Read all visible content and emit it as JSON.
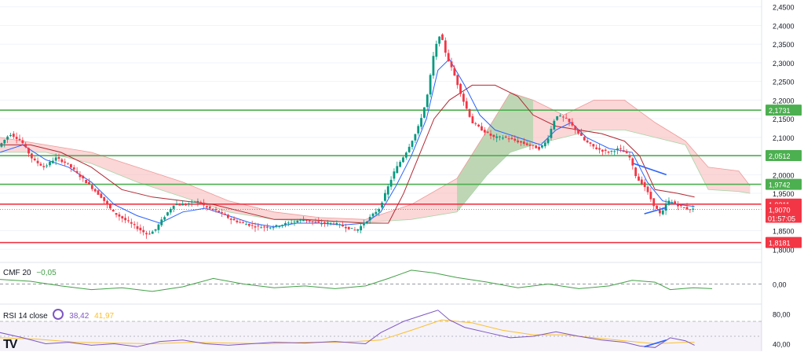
{
  "colors": {
    "up": "#089981",
    "down": "#f23645",
    "tenkan": "#2962ff",
    "kijun": "#b22833",
    "chikou": "#43a047",
    "cloud_bull": "#a5d6a7",
    "cloud_bear": "#f8b7b7",
    "support_line": "#f23645",
    "resistance_line": "#4caf50",
    "cmf": "#43a047",
    "rsi": "#7e57c2",
    "rsi_ma": "#fbc02d",
    "trend": "#2962ff"
  },
  "chart_data": {
    "type": "candlestick",
    "y_axis": {
      "range": [
        1.79,
        2.46
      ],
      "ticks": [
        "2,4500",
        "2,4000",
        "2,3500",
        "2,3000",
        "2,2500",
        "2,2000",
        "2,1500",
        "2,1000",
        "2,0500",
        "2,0000",
        "1,9500",
        "1,8500",
        "1,8000"
      ],
      "tick_values": [
        2.45,
        2.4,
        2.35,
        2.3,
        2.25,
        2.2,
        2.15,
        2.1,
        2.05,
        2.0,
        1.95,
        1.85,
        1.8
      ]
    },
    "level_lines": [
      {
        "label": "2,1731",
        "value": 2.1731,
        "color": "#4caf50"
      },
      {
        "label": "2,0512",
        "value": 2.0512,
        "color": "#4caf50"
      },
      {
        "label": "1,9742",
        "value": 1.9742,
        "color": "#4caf50"
      },
      {
        "label": "1,9211",
        "value": 1.9211,
        "color": "#f23645"
      },
      {
        "label": "1,8181",
        "value": 1.8181,
        "color": "#f23645"
      }
    ],
    "current_price": {
      "label": "1,9070",
      "value": 1.907,
      "countdown": "01:57:05"
    },
    "trendlines": [
      {
        "from": [
          0.832,
          2.03
        ],
        "to": [
          0.875,
          2.0
        ]
      },
      {
        "from": [
          0.846,
          1.895
        ],
        "to": [
          0.875,
          1.912
        ]
      }
    ],
    "price_path": [
      [
        0.0,
        2.075
      ],
      [
        0.015,
        2.11
      ],
      [
        0.03,
        2.09
      ],
      [
        0.045,
        2.04
      ],
      [
        0.06,
        2.02
      ],
      [
        0.075,
        2.045
      ],
      [
        0.09,
        2.03
      ],
      [
        0.105,
        2.0
      ],
      [
        0.12,
        1.97
      ],
      [
        0.135,
        1.94
      ],
      [
        0.15,
        1.9
      ],
      [
        0.165,
        1.88
      ],
      [
        0.18,
        1.86
      ],
      [
        0.195,
        1.84
      ],
      [
        0.205,
        1.85
      ],
      [
        0.215,
        1.88
      ],
      [
        0.23,
        1.92
      ],
      [
        0.245,
        1.92
      ],
      [
        0.26,
        1.93
      ],
      [
        0.275,
        1.91
      ],
      [
        0.29,
        1.9
      ],
      [
        0.305,
        1.88
      ],
      [
        0.32,
        1.87
      ],
      [
        0.34,
        1.86
      ],
      [
        0.36,
        1.86
      ],
      [
        0.38,
        1.87
      ],
      [
        0.4,
        1.88
      ],
      [
        0.42,
        1.87
      ],
      [
        0.44,
        1.87
      ],
      [
        0.455,
        1.86
      ],
      [
        0.47,
        1.85
      ],
      [
        0.485,
        1.88
      ],
      [
        0.5,
        1.91
      ],
      [
        0.51,
        1.96
      ],
      [
        0.52,
        2.01
      ],
      [
        0.535,
        2.06
      ],
      [
        0.55,
        2.12
      ],
      [
        0.562,
        2.2
      ],
      [
        0.572,
        2.33
      ],
      [
        0.58,
        2.38
      ],
      [
        0.588,
        2.32
      ],
      [
        0.598,
        2.27
      ],
      [
        0.61,
        2.2
      ],
      [
        0.622,
        2.14
      ],
      [
        0.635,
        2.12
      ],
      [
        0.65,
        2.1
      ],
      [
        0.665,
        2.1
      ],
      [
        0.68,
        2.09
      ],
      [
        0.695,
        2.08
      ],
      [
        0.71,
        2.07
      ],
      [
        0.72,
        2.09
      ],
      [
        0.732,
        2.16
      ],
      [
        0.745,
        2.15
      ],
      [
        0.758,
        2.12
      ],
      [
        0.77,
        2.09
      ],
      [
        0.785,
        2.07
      ],
      [
        0.8,
        2.06
      ],
      [
        0.815,
        2.07
      ],
      [
        0.828,
        2.05
      ],
      [
        0.838,
        1.99
      ],
      [
        0.848,
        1.97
      ],
      [
        0.86,
        1.92
      ],
      [
        0.87,
        1.89
      ],
      [
        0.878,
        1.93
      ],
      [
        0.886,
        1.925
      ],
      [
        0.895,
        1.915
      ],
      [
        0.905,
        1.908
      ],
      [
        0.912,
        1.907
      ]
    ],
    "tenkan_path": [
      [
        0.0,
        2.06
      ],
      [
        0.03,
        2.08
      ],
      [
        0.06,
        2.04
      ],
      [
        0.09,
        2.02
      ],
      [
        0.12,
        1.98
      ],
      [
        0.15,
        1.92
      ],
      [
        0.18,
        1.89
      ],
      [
        0.21,
        1.87
      ],
      [
        0.24,
        1.9
      ],
      [
        0.27,
        1.91
      ],
      [
        0.3,
        1.89
      ],
      [
        0.33,
        1.87
      ],
      [
        0.36,
        1.86
      ],
      [
        0.39,
        1.87
      ],
      [
        0.42,
        1.87
      ],
      [
        0.45,
        1.865
      ],
      [
        0.48,
        1.87
      ],
      [
        0.5,
        1.9
      ],
      [
        0.52,
        1.97
      ],
      [
        0.54,
        2.05
      ],
      [
        0.56,
        2.15
      ],
      [
        0.575,
        2.28
      ],
      [
        0.59,
        2.31
      ],
      [
        0.61,
        2.24
      ],
      [
        0.63,
        2.16
      ],
      [
        0.65,
        2.12
      ],
      [
        0.68,
        2.1
      ],
      [
        0.71,
        2.08
      ],
      [
        0.73,
        2.12
      ],
      [
        0.75,
        2.14
      ],
      [
        0.77,
        2.1
      ],
      [
        0.8,
        2.07
      ],
      [
        0.83,
        2.06
      ],
      [
        0.85,
        1.98
      ],
      [
        0.87,
        1.93
      ],
      [
        0.89,
        1.92
      ],
      [
        0.912,
        1.915
      ]
    ],
    "kijun_path": [
      [
        0.0,
        2.08
      ],
      [
        0.04,
        2.08
      ],
      [
        0.08,
        2.06
      ],
      [
        0.12,
        2.02
      ],
      [
        0.16,
        1.96
      ],
      [
        0.2,
        1.94
      ],
      [
        0.24,
        1.93
      ],
      [
        0.28,
        1.92
      ],
      [
        0.32,
        1.9
      ],
      [
        0.36,
        1.88
      ],
      [
        0.4,
        1.88
      ],
      [
        0.44,
        1.875
      ],
      [
        0.48,
        1.87
      ],
      [
        0.51,
        1.87
      ],
      [
        0.53,
        1.95
      ],
      [
        0.55,
        2.05
      ],
      [
        0.57,
        2.15
      ],
      [
        0.59,
        2.2
      ],
      [
        0.62,
        2.24
      ],
      [
        0.65,
        2.24
      ],
      [
        0.68,
        2.21
      ],
      [
        0.7,
        2.16
      ],
      [
        0.73,
        2.13
      ],
      [
        0.76,
        2.12
      ],
      [
        0.79,
        2.11
      ],
      [
        0.82,
        2.09
      ],
      [
        0.84,
        2.05
      ],
      [
        0.86,
        1.96
      ],
      [
        0.89,
        1.95
      ],
      [
        0.912,
        1.94
      ]
    ],
    "cloud_upper": [
      [
        0.0,
        2.1
      ],
      [
        0.06,
        2.08
      ],
      [
        0.12,
        2.06
      ],
      [
        0.18,
        2.02
      ],
      [
        0.24,
        1.98
      ],
      [
        0.3,
        1.93
      ],
      [
        0.36,
        1.9
      ],
      [
        0.42,
        1.885
      ],
      [
        0.48,
        1.88
      ],
      [
        0.54,
        1.92
      ],
      [
        0.6,
        1.99
      ],
      [
        0.64,
        2.12
      ],
      [
        0.67,
        2.22
      ],
      [
        0.7,
        2.2
      ],
      [
        0.74,
        2.16
      ],
      [
        0.78,
        2.2
      ],
      [
        0.82,
        2.2
      ],
      [
        0.86,
        2.14
      ],
      [
        0.9,
        2.09
      ],
      [
        0.93,
        2.02
      ],
      [
        0.97,
        2.01
      ],
      [
        0.985,
        1.97
      ]
    ],
    "cloud_lower": [
      [
        0.0,
        2.06
      ],
      [
        0.06,
        2.06
      ],
      [
        0.12,
        2.03
      ],
      [
        0.18,
        1.98
      ],
      [
        0.24,
        1.94
      ],
      [
        0.3,
        1.9
      ],
      [
        0.36,
        1.88
      ],
      [
        0.42,
        1.875
      ],
      [
        0.48,
        1.872
      ],
      [
        0.54,
        1.88
      ],
      [
        0.6,
        1.9
      ],
      [
        0.64,
        2.0
      ],
      [
        0.67,
        2.06
      ],
      [
        0.7,
        2.08
      ],
      [
        0.74,
        2.1
      ],
      [
        0.78,
        2.12
      ],
      [
        0.82,
        2.12
      ],
      [
        0.86,
        2.1
      ],
      [
        0.9,
        2.08
      ],
      [
        0.93,
        1.96
      ],
      [
        0.97,
        1.955
      ],
      [
        0.985,
        1.95
      ]
    ],
    "cmf": {
      "label": "CMF 20",
      "value": "−0,05",
      "zero_label": "0,00",
      "path": [
        [
          0.0,
          0.05
        ],
        [
          0.04,
          0.03
        ],
        [
          0.08,
          -0.02
        ],
        [
          0.12,
          -0.06
        ],
        [
          0.16,
          -0.04
        ],
        [
          0.2,
          -0.08
        ],
        [
          0.24,
          -0.03
        ],
        [
          0.28,
          0.06
        ],
        [
          0.32,
          0.0
        ],
        [
          0.36,
          -0.04
        ],
        [
          0.4,
          -0.02
        ],
        [
          0.44,
          -0.05
        ],
        [
          0.48,
          -0.02
        ],
        [
          0.51,
          0.06
        ],
        [
          0.54,
          0.15
        ],
        [
          0.57,
          0.12
        ],
        [
          0.6,
          0.07
        ],
        [
          0.64,
          0.02
        ],
        [
          0.68,
          -0.04
        ],
        [
          0.72,
          0.0
        ],
        [
          0.76,
          -0.05
        ],
        [
          0.8,
          -0.02
        ],
        [
          0.83,
          0.04
        ],
        [
          0.86,
          0.02
        ],
        [
          0.88,
          -0.06
        ],
        [
          0.91,
          -0.04
        ],
        [
          0.935,
          -0.05
        ]
      ]
    },
    "rsi": {
      "label": "RSI 14 close",
      "value": "38,42",
      "ma_value": "41,97",
      "ticks": [
        "80,00",
        "40,00"
      ],
      "tick_values": [
        80,
        40
      ],
      "range": [
        30,
        90
      ],
      "path": [
        [
          0.0,
          55
        ],
        [
          0.03,
          48
        ],
        [
          0.06,
          40
        ],
        [
          0.09,
          42
        ],
        [
          0.12,
          38
        ],
        [
          0.15,
          40
        ],
        [
          0.18,
          36
        ],
        [
          0.21,
          43
        ],
        [
          0.24,
          45
        ],
        [
          0.27,
          40
        ],
        [
          0.3,
          38
        ],
        [
          0.33,
          40
        ],
        [
          0.36,
          42
        ],
        [
          0.4,
          41
        ],
        [
          0.44,
          43
        ],
        [
          0.48,
          40
        ],
        [
          0.5,
          55
        ],
        [
          0.53,
          70
        ],
        [
          0.56,
          80
        ],
        [
          0.575,
          85
        ],
        [
          0.59,
          72
        ],
        [
          0.61,
          62
        ],
        [
          0.64,
          55
        ],
        [
          0.67,
          48
        ],
        [
          0.7,
          50
        ],
        [
          0.73,
          56
        ],
        [
          0.76,
          50
        ],
        [
          0.79,
          45
        ],
        [
          0.82,
          42
        ],
        [
          0.84,
          37
        ],
        [
          0.86,
          35
        ],
        [
          0.88,
          48
        ],
        [
          0.9,
          44
        ],
        [
          0.912,
          38
        ]
      ],
      "ma_path": [
        [
          0.0,
          48
        ],
        [
          0.05,
          46
        ],
        [
          0.1,
          42
        ],
        [
          0.15,
          41
        ],
        [
          0.2,
          40
        ],
        [
          0.25,
          42
        ],
        [
          0.3,
          41
        ],
        [
          0.35,
          40
        ],
        [
          0.4,
          42
        ],
        [
          0.45,
          42
        ],
        [
          0.5,
          45
        ],
        [
          0.54,
          58
        ],
        [
          0.58,
          72
        ],
        [
          0.62,
          68
        ],
        [
          0.66,
          58
        ],
        [
          0.7,
          52
        ],
        [
          0.74,
          52
        ],
        [
          0.78,
          48
        ],
        [
          0.82,
          44
        ],
        [
          0.86,
          40
        ],
        [
          0.9,
          42
        ],
        [
          0.912,
          42
        ]
      ]
    }
  }
}
